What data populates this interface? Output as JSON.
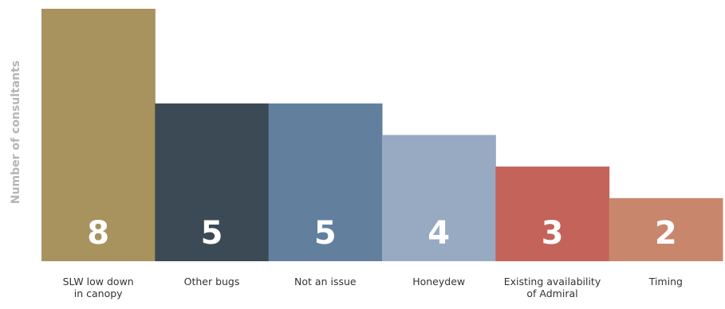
{
  "chart_data": {
    "type": "bar",
    "title": "",
    "xlabel": "",
    "ylabel": "Number of consultants",
    "ylim": [
      0,
      8
    ],
    "grid": false,
    "legend": "none",
    "categories": [
      [
        "SLW low down",
        "in canopy"
      ],
      [
        "Other bugs"
      ],
      [
        "Not an issue"
      ],
      [
        "Honeydew"
      ],
      [
        "Existing availability",
        "of Admiral"
      ],
      [
        "Timing"
      ]
    ],
    "values": [
      8,
      5,
      5,
      4,
      3,
      2
    ],
    "value_labels": [
      "8",
      "5",
      "5",
      "4",
      "3",
      "2"
    ],
    "colors": [
      "#A8925E",
      "#3B4A55",
      "#62809E",
      "#97AAC2",
      "#C3635A",
      "#C8876D"
    ],
    "value_label_color": "#ffffff",
    "category_label_color": "#333333"
  }
}
